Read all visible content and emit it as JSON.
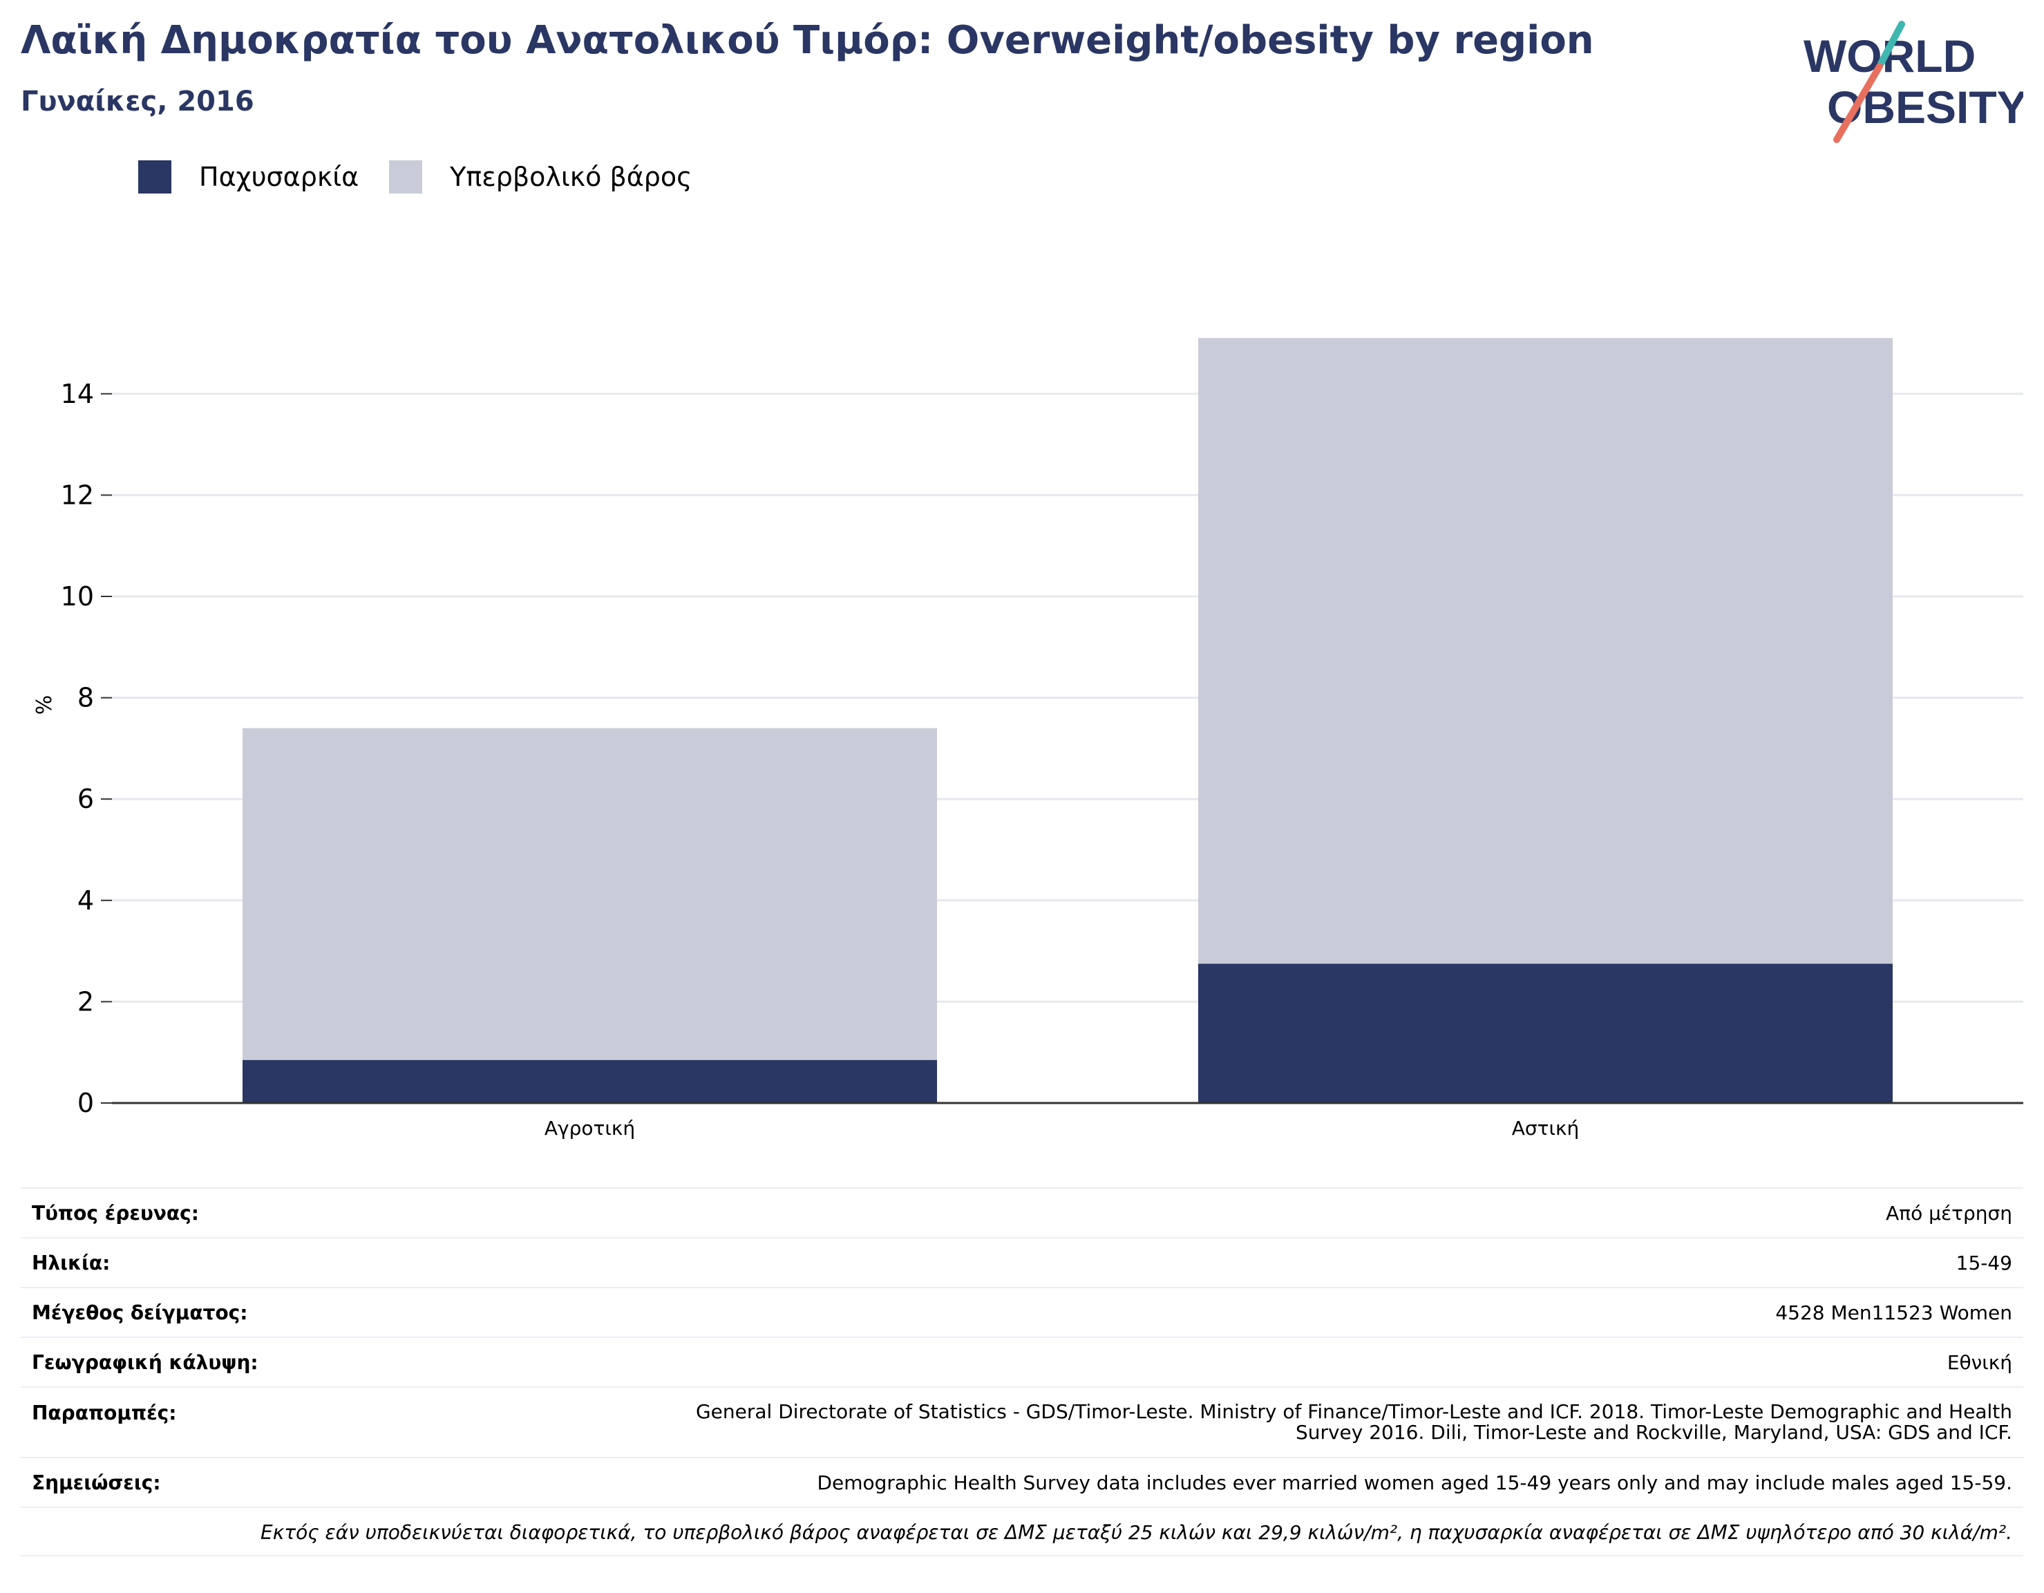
{
  "header": {
    "title": "Λαϊκή Δημοκρατία του Ανατολικού Τιμόρ: Overweight/obesity by region",
    "subtitle": "Γυναίκες, 2016"
  },
  "logo": {
    "line1": "WORLD",
    "line2": "OBESITY",
    "colors": {
      "text": "#2a3663",
      "teal": "#3fb7b0",
      "coral": "#e8705f"
    }
  },
  "colors": {
    "obesity": "#2a3663",
    "overweight": "#c9ccd8",
    "grid": "#e6e8ee",
    "axis": "#333333"
  },
  "chart_data": {
    "type": "bar",
    "stacked": true,
    "categories": [
      "Αγροτική",
      "Αστική"
    ],
    "series": [
      {
        "name": "Παχυσαρκία",
        "values": [
          0.85,
          2.75
        ]
      },
      {
        "name": "Υπερβολικό βάρος",
        "values": [
          6.55,
          12.35
        ]
      }
    ],
    "ylabel": "%",
    "ylim": [
      0,
      15.5
    ],
    "yticks": [
      0,
      2,
      4,
      6,
      8,
      10,
      12,
      14
    ],
    "grid": true,
    "legend": "top-left"
  },
  "info": {
    "rows": [
      {
        "label": "Τύπος έρευνας:",
        "value": "Από μέτρηση"
      },
      {
        "label": "Ηλικία:",
        "value": "15-49"
      },
      {
        "label": "Μέγεθος δείγματος:",
        "value": "4528 Men11523 Women"
      },
      {
        "label": "Γεωγραφική κάλυψη:",
        "value": "Εθνική"
      },
      {
        "label": "Παραπομπές:",
        "value_line1": "General Directorate of Statistics - GDS/Timor-Leste. Ministry of Finance/Timor-Leste and ICF. 2018. Timor-Leste Demographic and Health",
        "value_line2": "Survey 2016. Dili, Timor-Leste and Rockville, Maryland, USA: GDS and ICF."
      },
      {
        "label": "Σημειώσεις:",
        "value": "Demographic Health Survey data includes ever married women aged 15-49 years only and may include males aged 15-59."
      }
    ],
    "footnote": "Εκτός εάν υποδεικνύεται διαφορετικά, το υπερβολικό βάρος αναφέρεται σε ΔΜΣ μεταξύ 25 κιλών και 29,9 κιλών/m², η παχυσαρκία αναφέρεται σε ΔΜΣ υψηλότερο από 30 κιλά/m²."
  }
}
